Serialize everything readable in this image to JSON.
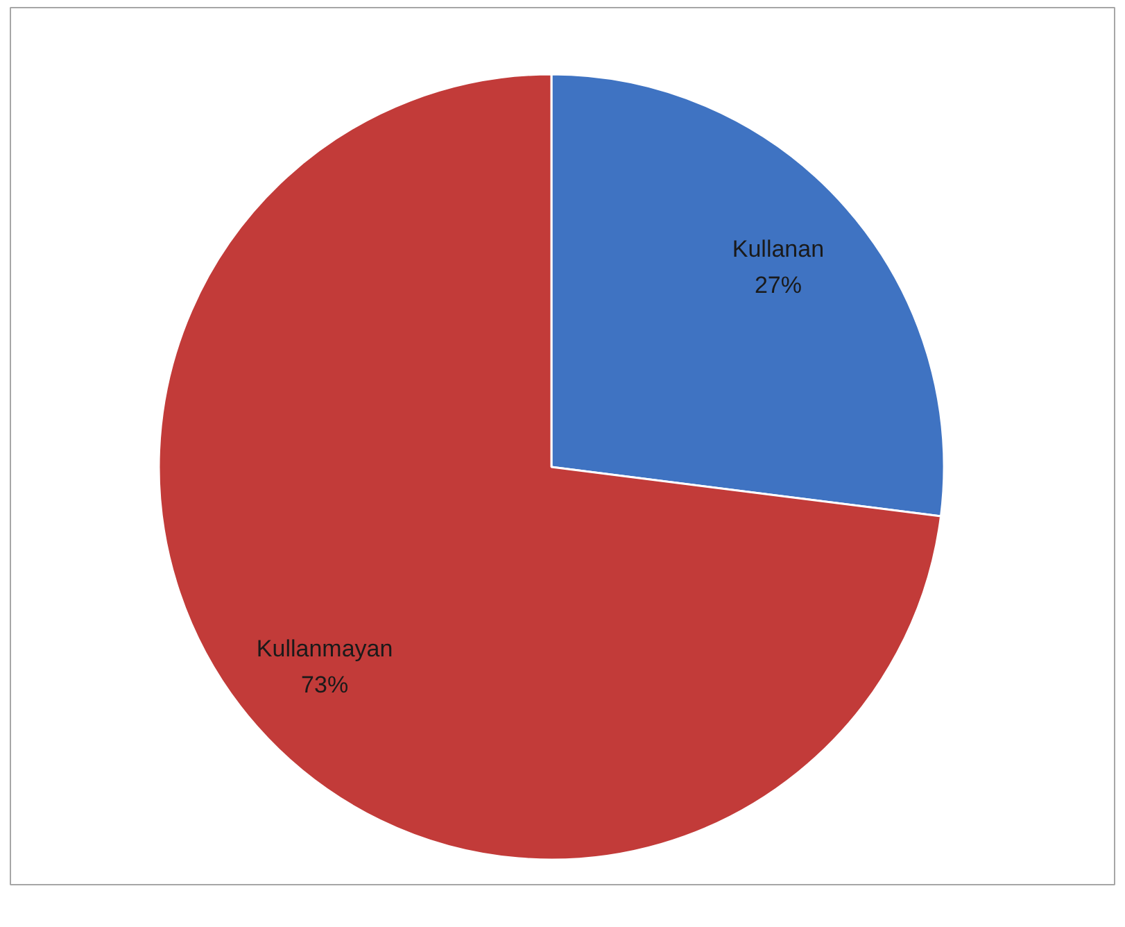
{
  "chart_data": {
    "type": "pie",
    "categories": [
      "Kullanan",
      "Kullanmayan"
    ],
    "values": [
      27,
      73
    ],
    "colors": [
      "#3f73c2",
      "#c23b39"
    ],
    "value_labels": [
      "27%",
      "73%"
    ]
  }
}
